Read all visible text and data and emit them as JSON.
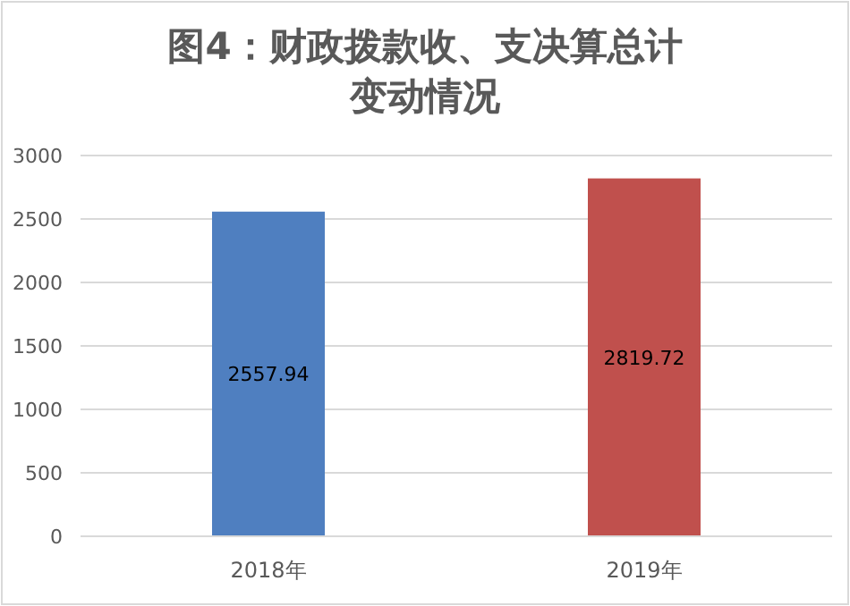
{
  "chart_data": {
    "type": "bar",
    "title": "图4：财政拨款收、支决算总计变动情况",
    "categories": [
      "2018年",
      "2019年"
    ],
    "values": [
      2557.94,
      2819.72
    ],
    "colors": [
      "#4f7fc0",
      "#c0504d"
    ],
    "ylim": [
      0,
      3000
    ],
    "yticks": [
      0,
      500,
      1000,
      1500,
      2000,
      2500,
      3000
    ],
    "grid": "y",
    "data_labels": true
  }
}
